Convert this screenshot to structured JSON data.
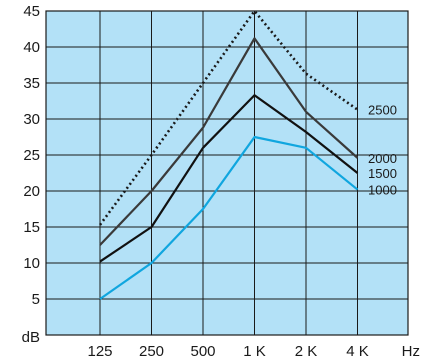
{
  "chart_data": {
    "type": "line",
    "title": "",
    "xlabel": "",
    "ylabel": "",
    "x_unit": "Hz",
    "y_unit": "dB",
    "categories": [
      "125",
      "250",
      "500",
      "1 K",
      "2 K",
      "4 K"
    ],
    "ylim": [
      0,
      45
    ],
    "y_ticks": [
      5,
      10,
      15,
      20,
      25,
      30,
      35,
      40,
      45
    ],
    "grid": true,
    "background_color": "#b3e1f7",
    "series": [
      {
        "name": "2500",
        "values": [
          15.3,
          25,
          35,
          45,
          36.3,
          31.3
        ],
        "color": "#1a1a1a",
        "style": "dotted"
      },
      {
        "name": "2000",
        "values": [
          12.5,
          20,
          28.8,
          41.2,
          31,
          24.6
        ],
        "color": "#3a3a3a",
        "style": "solid"
      },
      {
        "name": "1500",
        "values": [
          10.2,
          15,
          26,
          33.3,
          28.2,
          22.5
        ],
        "color": "#111111",
        "style": "solid"
      },
      {
        "name": "1000",
        "values": [
          5,
          10,
          17.5,
          27.5,
          26,
          20.2
        ],
        "color": "#10a6df",
        "style": "solid"
      }
    ]
  }
}
